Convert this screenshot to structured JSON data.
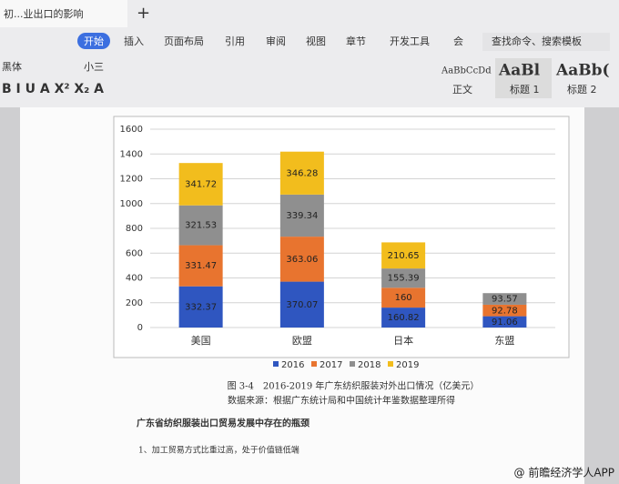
{
  "app": {
    "tab_title": "初...业出口的影响",
    "menu": [
      "开始",
      "插入",
      "页面布局",
      "引用",
      "审阅",
      "视图",
      "章节",
      "开发工具",
      "会"
    ],
    "search": "查找命令、搜索模板",
    "font": "黑体",
    "font_size": "小三",
    "styles": [
      {
        "preview": "AaBbCcDd",
        "name": "正文"
      },
      {
        "preview": "AaBl",
        "name": "标题 1"
      },
      {
        "preview": "AaBb(",
        "name": "标题 2"
      }
    ]
  },
  "chart_data": {
    "type": "stacked_bar",
    "categories": [
      "美国",
      "欧盟",
      "日本",
      "东盟"
    ],
    "series": [
      {
        "name": "2016",
        "color": "#2f56c0",
        "values": [
          332.37,
          370.07,
          160.82,
          91.06
        ]
      },
      {
        "name": "2017",
        "color": "#e8742f",
        "values": [
          331.47,
          363.06,
          160,
          92.78
        ]
      },
      {
        "name": "2018",
        "color": "#8f8f8f",
        "values": [
          321.53,
          339.34,
          155.39,
          93.57
        ]
      },
      {
        "name": "2019",
        "color": "#f2bd1d",
        "values": [
          341.72,
          346.28,
          210.65,
          null
        ]
      }
    ],
    "ylim": [
      0,
      1600
    ],
    "yticks": [
      0,
      200,
      400,
      600,
      800,
      1000,
      1200,
      1400,
      1600
    ],
    "grid": true,
    "legend": "bottom"
  },
  "document": {
    "caption": "图 3-4　2016-2019 年广东纺织服装对外出口情况（亿美元）",
    "source": "数据来源：根据广东统计局和中国统计年鉴数据整理所得",
    "heading": "广东省纺织服装出口贸易发展中存在的瓶颈",
    "paragraph": "1、加工贸易方式比重过高，处于价值链低端"
  },
  "watermark": "@ 前瞻经济学人APP"
}
